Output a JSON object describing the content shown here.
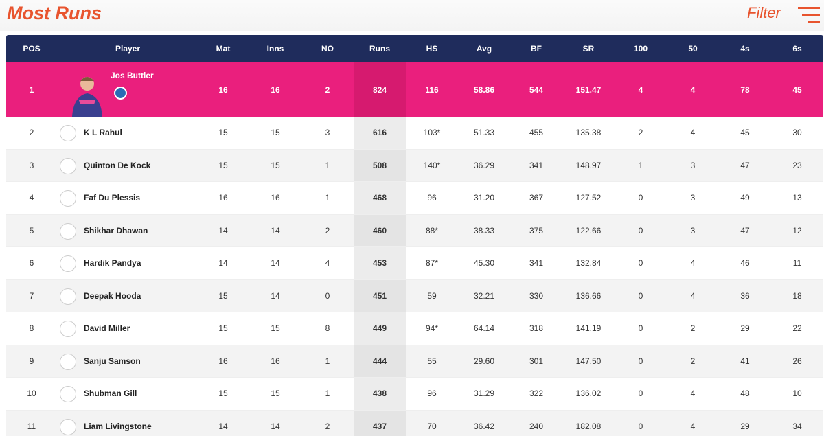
{
  "header": {
    "title": "Most Runs",
    "filter": "Filter"
  },
  "table": {
    "columns": [
      "POS",
      "Player",
      "Mat",
      "Inns",
      "NO",
      "Runs",
      "HS",
      "Avg",
      "BF",
      "SR",
      "100",
      "50",
      "4s",
      "6s"
    ],
    "rows": [
      [
        "1",
        "Jos Buttler",
        "16",
        "16",
        "2",
        "824",
        "116",
        "58.86",
        "544",
        "151.47",
        "4",
        "4",
        "78",
        "45"
      ],
      [
        "2",
        "K L Rahul",
        "15",
        "15",
        "3",
        "616",
        "103*",
        "51.33",
        "455",
        "135.38",
        "2",
        "4",
        "45",
        "30"
      ],
      [
        "3",
        "Quinton De Kock",
        "15",
        "15",
        "1",
        "508",
        "140*",
        "36.29",
        "341",
        "148.97",
        "1",
        "3",
        "47",
        "23"
      ],
      [
        "4",
        "Faf Du Plessis",
        "16",
        "16",
        "1",
        "468",
        "96",
        "31.20",
        "367",
        "127.52",
        "0",
        "3",
        "49",
        "13"
      ],
      [
        "5",
        "Shikhar Dhawan",
        "14",
        "14",
        "2",
        "460",
        "88*",
        "38.33",
        "375",
        "122.66",
        "0",
        "3",
        "47",
        "12"
      ],
      [
        "6",
        "Hardik Pandya",
        "14",
        "14",
        "4",
        "453",
        "87*",
        "45.30",
        "341",
        "132.84",
        "0",
        "4",
        "46",
        "11"
      ],
      [
        "7",
        "Deepak Hooda",
        "15",
        "14",
        "0",
        "451",
        "59",
        "32.21",
        "330",
        "136.66",
        "0",
        "4",
        "36",
        "18"
      ],
      [
        "8",
        "David Miller",
        "15",
        "15",
        "8",
        "449",
        "94*",
        "64.14",
        "318",
        "141.19",
        "0",
        "2",
        "29",
        "22"
      ],
      [
        "9",
        "Sanju Samson",
        "16",
        "16",
        "1",
        "444",
        "55",
        "29.60",
        "301",
        "147.50",
        "0",
        "2",
        "41",
        "26"
      ],
      [
        "10",
        "Shubman Gill",
        "15",
        "15",
        "1",
        "438",
        "96",
        "31.29",
        "322",
        "136.02",
        "0",
        "4",
        "48",
        "10"
      ],
      [
        "11",
        "Liam Livingstone",
        "14",
        "14",
        "2",
        "437",
        "70",
        "36.42",
        "240",
        "182.08",
        "0",
        "4",
        "29",
        "34"
      ]
    ]
  }
}
